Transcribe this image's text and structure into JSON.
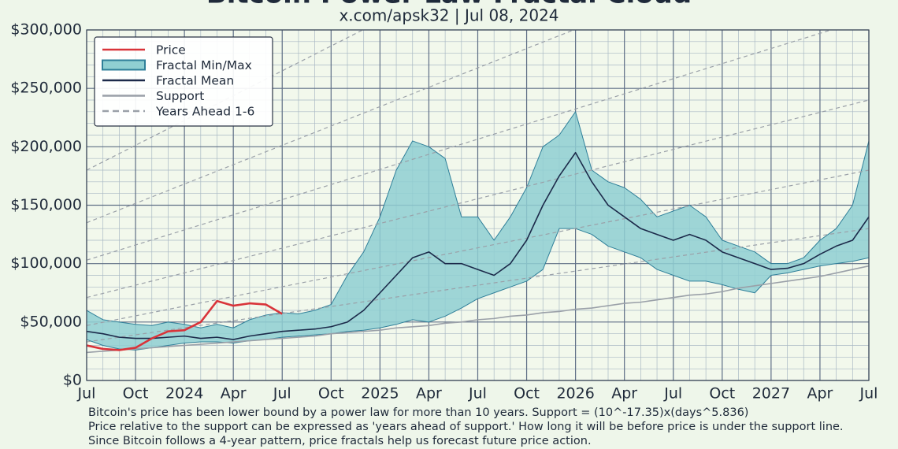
{
  "chart_data": {
    "type": "line",
    "title": "Bitcoin Power Law Fractal Cloud",
    "subtitle": "x.com/apsk32 | Jul 08, 2024",
    "x": [
      "2023-07",
      "2023-08",
      "2023-09",
      "2023-10",
      "2023-11",
      "2023-12",
      "2024-01",
      "2024-02",
      "2024-03",
      "2024-04",
      "2024-05",
      "2024-06",
      "2024-07",
      "2024-08",
      "2024-09",
      "2024-10",
      "2024-11",
      "2024-12",
      "2025-01",
      "2025-02",
      "2025-03",
      "2025-04",
      "2025-05",
      "2025-06",
      "2025-07",
      "2025-08",
      "2025-09",
      "2025-10",
      "2025-11",
      "2025-12",
      "2026-01",
      "2026-02",
      "2026-03",
      "2026-04",
      "2026-05",
      "2026-06",
      "2026-07",
      "2026-08",
      "2026-09",
      "2026-10",
      "2026-11",
      "2026-12",
      "2027-01",
      "2027-02",
      "2027-03",
      "2027-04",
      "2027-05",
      "2027-06",
      "2027-07"
    ],
    "xlim": [
      "2023-07",
      "2027-07"
    ],
    "xticks": [
      {
        "value": "2023-07",
        "label": "Jul"
      },
      {
        "value": "2023-10",
        "label": "Oct"
      },
      {
        "value": "2024-01",
        "label": "2024"
      },
      {
        "value": "2024-04",
        "label": "Apr"
      },
      {
        "value": "2024-07",
        "label": "Jul"
      },
      {
        "value": "2024-10",
        "label": "Oct"
      },
      {
        "value": "2025-01",
        "label": "2025"
      },
      {
        "value": "2025-04",
        "label": "Apr"
      },
      {
        "value": "2025-07",
        "label": "Jul"
      },
      {
        "value": "2025-10",
        "label": "Oct"
      },
      {
        "value": "2026-01",
        "label": "2026"
      },
      {
        "value": "2026-04",
        "label": "Apr"
      },
      {
        "value": "2026-07",
        "label": "Jul"
      },
      {
        "value": "2026-10",
        "label": "Oct"
      },
      {
        "value": "2027-01",
        "label": "2027"
      },
      {
        "value": "2027-04",
        "label": "Apr"
      },
      {
        "value": "2027-07",
        "label": "Jul"
      }
    ],
    "ylim": [
      0,
      300000
    ],
    "yticks": [
      {
        "value": 0,
        "label": "$0"
      },
      {
        "value": 50000,
        "label": "$50,000"
      },
      {
        "value": 100000,
        "label": "$100,000"
      },
      {
        "value": 150000,
        "label": "$150,000"
      },
      {
        "value": 200000,
        "label": "$200,000"
      },
      {
        "value": 250000,
        "label": "$250,000"
      },
      {
        "value": 300000,
        "label": "$300,000"
      }
    ],
    "grid": true,
    "legend": "upper left",
    "series": [
      {
        "name": "Price",
        "color": "#d9343a",
        "style": "solid",
        "values": [
          30000,
          27000,
          26000,
          28000,
          36000,
          42000,
          43000,
          50000,
          68000,
          64000,
          66000,
          65000,
          57000,
          null,
          null,
          null,
          null,
          null,
          null,
          null,
          null,
          null,
          null,
          null,
          null,
          null,
          null,
          null,
          null,
          null,
          null,
          null,
          null,
          null,
          null,
          null,
          null,
          null,
          null,
          null,
          null,
          null,
          null,
          null,
          null,
          null,
          null,
          null,
          null
        ]
      },
      {
        "name": "Fractal Min/Max",
        "color": "#8fcfd2",
        "edge_color": "#2f7f99",
        "style": "band",
        "values": [
          60000,
          52000,
          50000,
          48000,
          47000,
          50000,
          48000,
          45000,
          48000,
          45000,
          52000,
          56000,
          58000,
          57000,
          60000,
          65000,
          90000,
          110000,
          140000,
          180000,
          205000,
          200000,
          190000,
          140000,
          140000,
          120000,
          140000,
          165000,
          200000,
          210000,
          230000,
          180000,
          170000,
          165000,
          155000,
          140000,
          145000,
          150000,
          140000,
          120000,
          115000,
          110000,
          100000,
          100000,
          105000,
          120000,
          130000,
          150000,
          205000
        ],
        "lower": [
          35000,
          30000,
          27000,
          26000,
          28000,
          30000,
          32000,
          33000,
          33000,
          32000,
          34000,
          35000,
          37000,
          38000,
          39000,
          40000,
          42000,
          43000,
          45000,
          48000,
          52000,
          50000,
          55000,
          62000,
          70000,
          75000,
          80000,
          85000,
          95000,
          130000,
          130000,
          125000,
          115000,
          110000,
          105000,
          95000,
          90000,
          85000,
          85000,
          82000,
          78000,
          75000,
          90000,
          92000,
          95000,
          98000,
          100000,
          102000,
          105000
        ]
      },
      {
        "name": "Fractal Mean",
        "color": "#1c2a4a",
        "style": "solid",
        "values": [
          42000,
          40000,
          37000,
          36000,
          36000,
          37000,
          38000,
          36000,
          37000,
          35000,
          38000,
          40000,
          42000,
          43000,
          44000,
          46000,
          50000,
          60000,
          75000,
          90000,
          105000,
          110000,
          100000,
          100000,
          95000,
          90000,
          100000,
          120000,
          150000,
          175000,
          195000,
          170000,
          150000,
          140000,
          130000,
          125000,
          120000,
          125000,
          120000,
          110000,
          105000,
          100000,
          95000,
          96000,
          100000,
          108000,
          115000,
          120000,
          140000
        ]
      },
      {
        "name": "Support",
        "color": "#9aa0a8",
        "style": "solid",
        "values": [
          24000,
          25000,
          26000,
          27000,
          28000,
          29000,
          30000,
          31000,
          32000,
          33000,
          34000,
          35000,
          36000,
          37000,
          38000,
          40000,
          41000,
          42000,
          43000,
          45000,
          46000,
          47000,
          49000,
          50000,
          52000,
          53000,
          55000,
          56000,
          58000,
          59000,
          61000,
          62000,
          64000,
          66000,
          67000,
          69000,
          71000,
          73000,
          74000,
          76000,
          79000,
          81000,
          83000,
          85000,
          87000,
          89000,
          92000,
          95000,
          98000
        ]
      }
    ],
    "guides": {
      "name": "Years Ahead 1-6",
      "color": "#9aa0a8",
      "style": "dashed",
      "x": [
        "2023-07",
        "2027-07"
      ],
      "lines": [
        [
          33000,
          130000
        ],
        [
          47000,
          180000
        ],
        [
          71000,
          240000
        ],
        [
          103000,
          310000
        ],
        [
          135000,
          400000
        ],
        [
          180000,
          520000
        ]
      ]
    },
    "annotations": [
      "Bitcoin's price has been lower bound by a power law for more than 10 years. Support = (10^-17.35)x(days^5.836)",
      "Price relative to the support can be expressed as 'years ahead of support.' How long it will be before price is under the support line.",
      "Since Bitcoin follows a 4-year pattern, price fractals help us forecast future price action."
    ]
  }
}
